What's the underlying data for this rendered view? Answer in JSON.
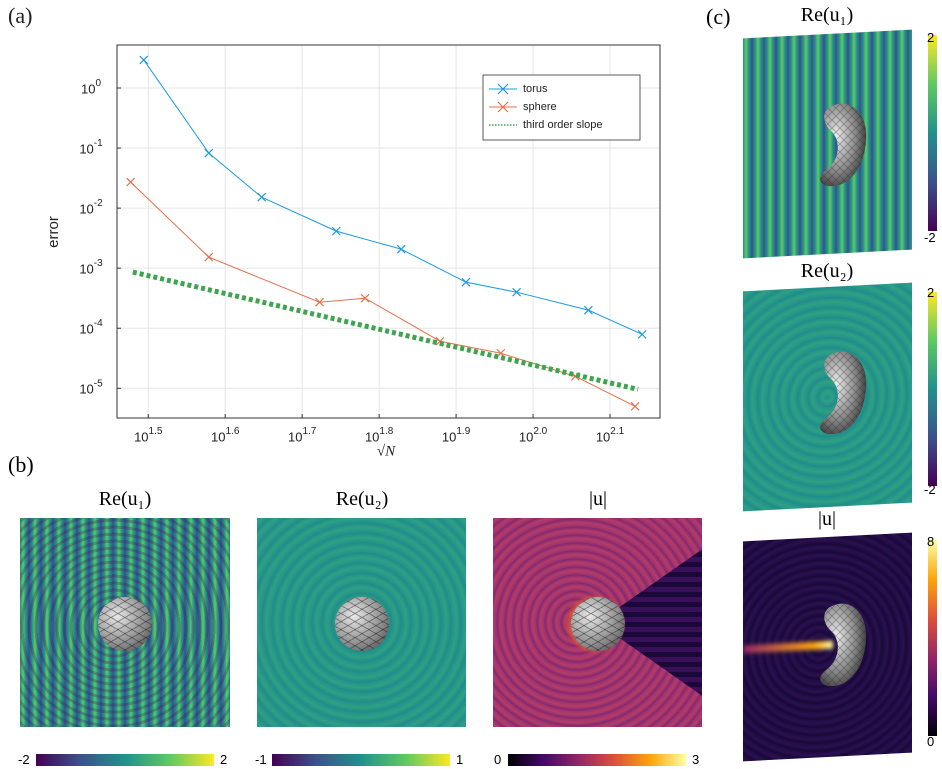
{
  "chart_data": {
    "type": "line",
    "panel_label": "(a)",
    "xlabel": "√N",
    "ylabel": "error",
    "xscale": "log",
    "yscale": "log",
    "grid": true,
    "legend": "upper-right",
    "xlim": [
      28.8,
      146.2
    ],
    "ylim": [
      3.2e-06,
      5.2
    ],
    "xticks": [
      {
        "value": 31.6228,
        "label": "10^1.5"
      },
      {
        "value": 39.8107,
        "label": "10^1.6"
      },
      {
        "value": 50.1187,
        "label": "10^1.7"
      },
      {
        "value": 63.0957,
        "label": "10^1.8"
      },
      {
        "value": 79.4328,
        "label": "10^1.9"
      },
      {
        "value": 100,
        "label": "10^2.0"
      },
      {
        "value": 125.8925,
        "label": "10^2.1"
      }
    ],
    "yticks": [
      {
        "value": 1,
        "label": "10^0"
      },
      {
        "value": 0.1,
        "label": "10^-1"
      },
      {
        "value": 0.01,
        "label": "10^-2"
      },
      {
        "value": 0.001,
        "label": "10^-3"
      },
      {
        "value": 0.0001,
        "label": "10^-4"
      },
      {
        "value": 1e-05,
        "label": "10^-5"
      }
    ],
    "series": [
      {
        "name": "torus",
        "color": "#1a9be0",
        "style": "solid",
        "marker": "x",
        "x": [
          31.2,
          37.9,
          44.4,
          55.5,
          67.4,
          81.8,
          95.2,
          118,
          138.6
        ],
        "values": [
          2.93,
          0.0826,
          0.0152,
          0.00414,
          0.00207,
          0.000585,
          0.000398,
          0.0002,
          7.9e-05
        ]
      },
      {
        "name": "sphere",
        "color": "#e3704a",
        "style": "solid",
        "marker": "x",
        "x": [
          30.0,
          37.9,
          52.8,
          60.5,
          75.7,
          90.8,
          113.5,
          135.7
        ],
        "values": [
          0.0271,
          0.00153,
          0.000271,
          0.000316,
          6.07e-05,
          3.83e-05,
          1.58e-05,
          5e-06
        ]
      },
      {
        "name": "third order slope",
        "color": "#3ea44e",
        "style": "dotted",
        "marker": "none",
        "x": [
          30.2,
          136.9
        ],
        "values": [
          0.00086,
          9.6e-06
        ]
      }
    ]
  },
  "panels": {
    "b": {
      "label": "(b)",
      "plots": [
        {
          "title": "Re(u₁)",
          "cbar_min": -2,
          "cbar_max": 2
        },
        {
          "title": "Re(u₂)",
          "cbar_min": -1,
          "cbar_max": 1
        },
        {
          "title": "|u|",
          "cbar_min": 0,
          "cbar_max": 3
        }
      ]
    },
    "c": {
      "label": "(c)",
      "plots": [
        {
          "title": "Re(u₁)",
          "cbar_min": -2,
          "cbar_max": 2
        },
        {
          "title": "Re(u₂)",
          "cbar_min": -2,
          "cbar_max": 2
        },
        {
          "title": "|u|",
          "cbar_min": 0,
          "cbar_max": 8
        }
      ]
    }
  }
}
